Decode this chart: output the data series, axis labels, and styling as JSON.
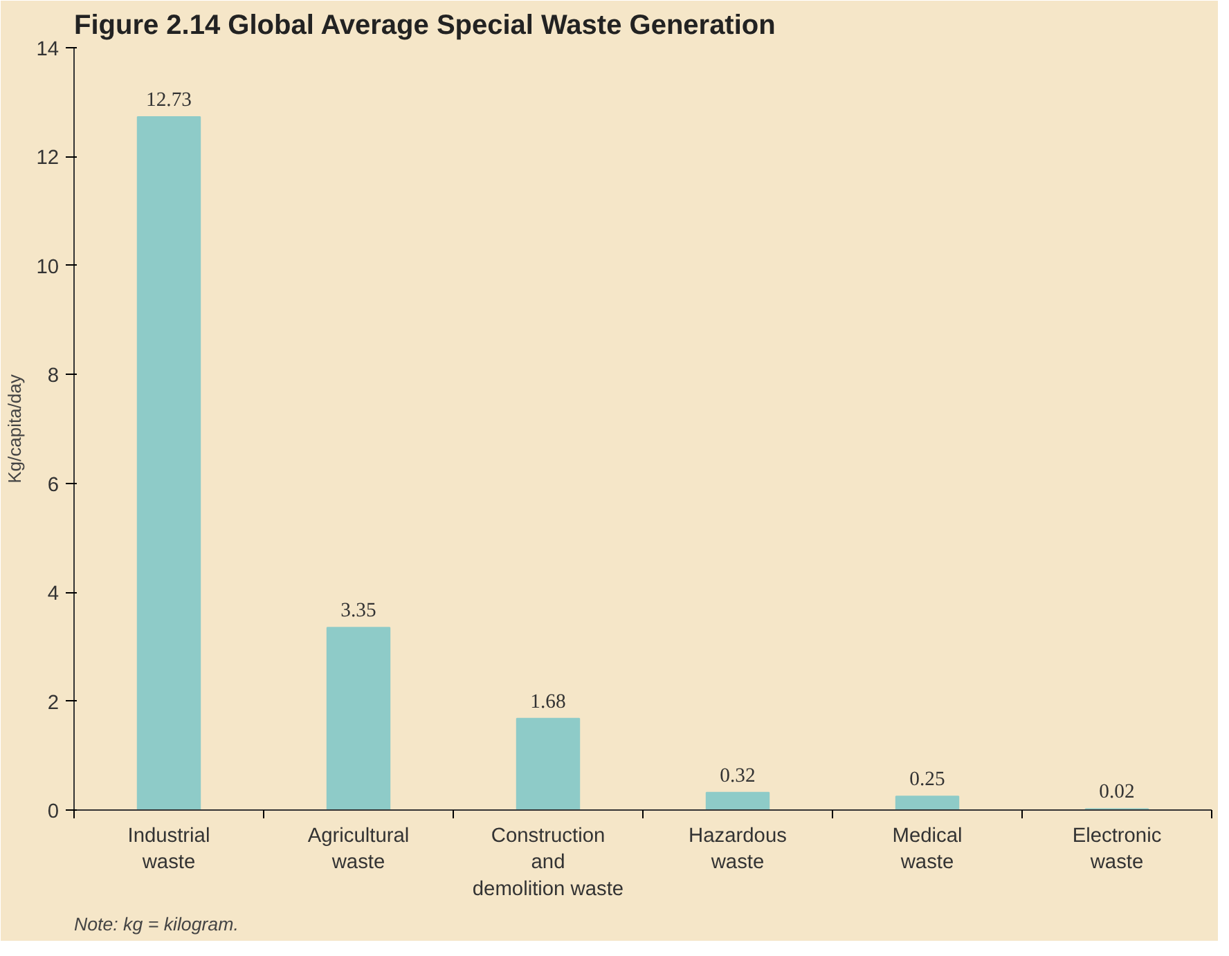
{
  "chart_data": {
    "type": "bar",
    "title": "Figure 2.14  Global Average Special Waste Generation",
    "ylabel": "Kg/capita/day",
    "categories": [
      "Industrial\nwaste",
      "Agricultural\nwaste",
      "Construction\nand\ndemolition waste",
      "Hazardous\nwaste",
      "Medical\nwaste",
      "Electronic\nwaste"
    ],
    "values": [
      12.73,
      3.35,
      1.68,
      0.32,
      0.25,
      0.02
    ],
    "color": "#8ecbc8",
    "ylim": [
      0,
      14
    ],
    "yticks": [
      0,
      2,
      4,
      6,
      8,
      10,
      12,
      14
    ],
    "grid": false,
    "data_labels": true,
    "annotations": [
      "Note: kg = kilogram."
    ]
  }
}
